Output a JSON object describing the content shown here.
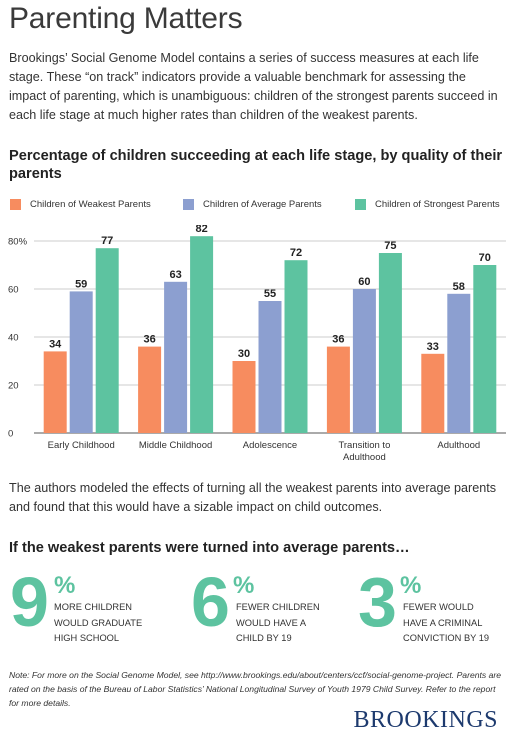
{
  "title": "Parenting Matters",
  "intro": "Brookings’ Social Genome Model contains a series of success measures at each life stage. These “on track” indicators provide a valuable benchmark for assessing the impact of parenting, which is unambiguous: children of the strongest parents succeed in each life stage at much higher rates than children of the weakest parents.",
  "chart_data": {
    "type": "bar",
    "title": "Percentage of children succeeding at each life stage, by quality of their parents",
    "categories": [
      "Early Childhood",
      "Middle Childhood",
      "Adolescence",
      "Transition to Adulthood",
      "Adulthood"
    ],
    "category_lines": [
      [
        "Early Childhood"
      ],
      [
        "Middle Childhood"
      ],
      [
        "Adolescence"
      ],
      [
        "Transition to",
        "Adulthood"
      ],
      [
        "Adulthood"
      ]
    ],
    "series": [
      {
        "name": "Children of Weakest Parents",
        "color": "#f78c5f",
        "values": [
          34,
          36,
          30,
          36,
          33
        ]
      },
      {
        "name": "Children of Average Parents",
        "color": "#8c9fd0",
        "values": [
          59,
          63,
          55,
          60,
          58
        ]
      },
      {
        "name": "Children of Strongest Parents",
        "color": "#5dc3a0",
        "values": [
          77,
          82,
          72,
          75,
          70
        ]
      }
    ],
    "yticks": [
      "0",
      "20",
      "40",
      "60",
      "80%"
    ],
    "ytick_values": [
      0,
      20,
      40,
      60,
      80
    ],
    "ylim": [
      0,
      82
    ],
    "legend_position": "top",
    "grid": true
  },
  "mid_text": "The authors modeled the effects of turning all the weakest parents into average parents and found that this would have a sizable impact on child outcomes.",
  "subheading": "If the weakest parents were turned into average parents…",
  "stats": [
    {
      "number": "9",
      "unit": "%",
      "lines": [
        "MORE CHILDREN",
        "WOULD GRADUATE",
        "HIGH SCHOOL"
      ]
    },
    {
      "number": "6",
      "unit": "%",
      "lines": [
        "FEWER CHILDREN",
        "WOULD HAVE A",
        "CHILD BY 19"
      ]
    },
    {
      "number": "3",
      "unit": "%",
      "lines": [
        "FEWER WOULD",
        "HAVE A CRIMINAL",
        "CONVICTION BY 19"
      ]
    }
  ],
  "note": "Note: For more on the Social Genome Model, see http://www.brookings.edu/about/centers/ccf/social-genome-project. Parents are rated on the basis of the Bureau of Labor Statistics’ National Longitudinal Survey of Youth 1979 Child Survey. Refer to the report for more details.",
  "logo": "BROOKINGS"
}
